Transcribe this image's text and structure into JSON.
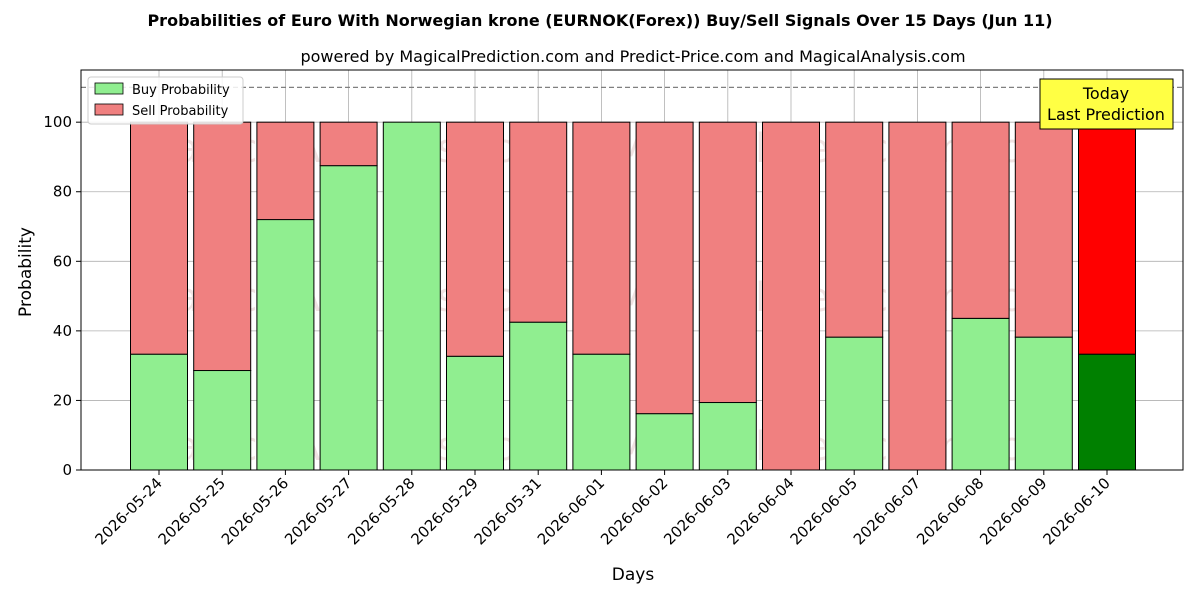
{
  "chart_data": {
    "type": "bar",
    "title": "Probabilities of Euro With Norwegian krone (EURNOK(Forex)) Buy/Sell Signals Over 15 Days (Jun 11)",
    "subtitle": "powered by MagicalPrediction.com and Predict-Price.com and MagicalAnalysis.com",
    "xlabel": "Days",
    "ylabel": "Probability",
    "ylim": [
      0,
      115
    ],
    "yticks": [
      0,
      20,
      40,
      60,
      80,
      100
    ],
    "threshold": 110,
    "grid": true,
    "legend_position": "top-left",
    "categories": [
      "2026-05-24",
      "2026-05-25",
      "2026-05-26",
      "2026-05-27",
      "2026-05-28",
      "2026-05-29",
      "2026-05-31",
      "2026-06-01",
      "2026-06-02",
      "2026-06-03",
      "2026-06-04",
      "2026-06-05",
      "2026-06-07",
      "2026-06-08",
      "2026-06-09",
      "2026-06-10"
    ],
    "series": [
      {
        "name": "Buy Probability",
        "color": "#90ee90",
        "values": [
          33.3,
          28.6,
          72,
          87.5,
          100,
          32.7,
          42.5,
          33.3,
          16.2,
          19.4,
          0,
          38.2,
          0,
          43.6,
          38.2,
          33.3
        ]
      },
      {
        "name": "Sell Probability",
        "color": "#f08080",
        "values": [
          66.7,
          71.4,
          28,
          12.5,
          0,
          67.3,
          57.5,
          66.7,
          83.8,
          80.6,
          100,
          61.8,
          100,
          56.4,
          61.8,
          66.7
        ]
      }
    ],
    "highlight": {
      "index": 15,
      "buy_color": "#008000",
      "sell_color": "#ff0000"
    },
    "annotation": {
      "lines": [
        "Today",
        "Last Prediction"
      ],
      "background": "#ffff44"
    },
    "watermarks": [
      "MagicalAnalysis.com",
      "MagicalPrediction.com"
    ]
  }
}
